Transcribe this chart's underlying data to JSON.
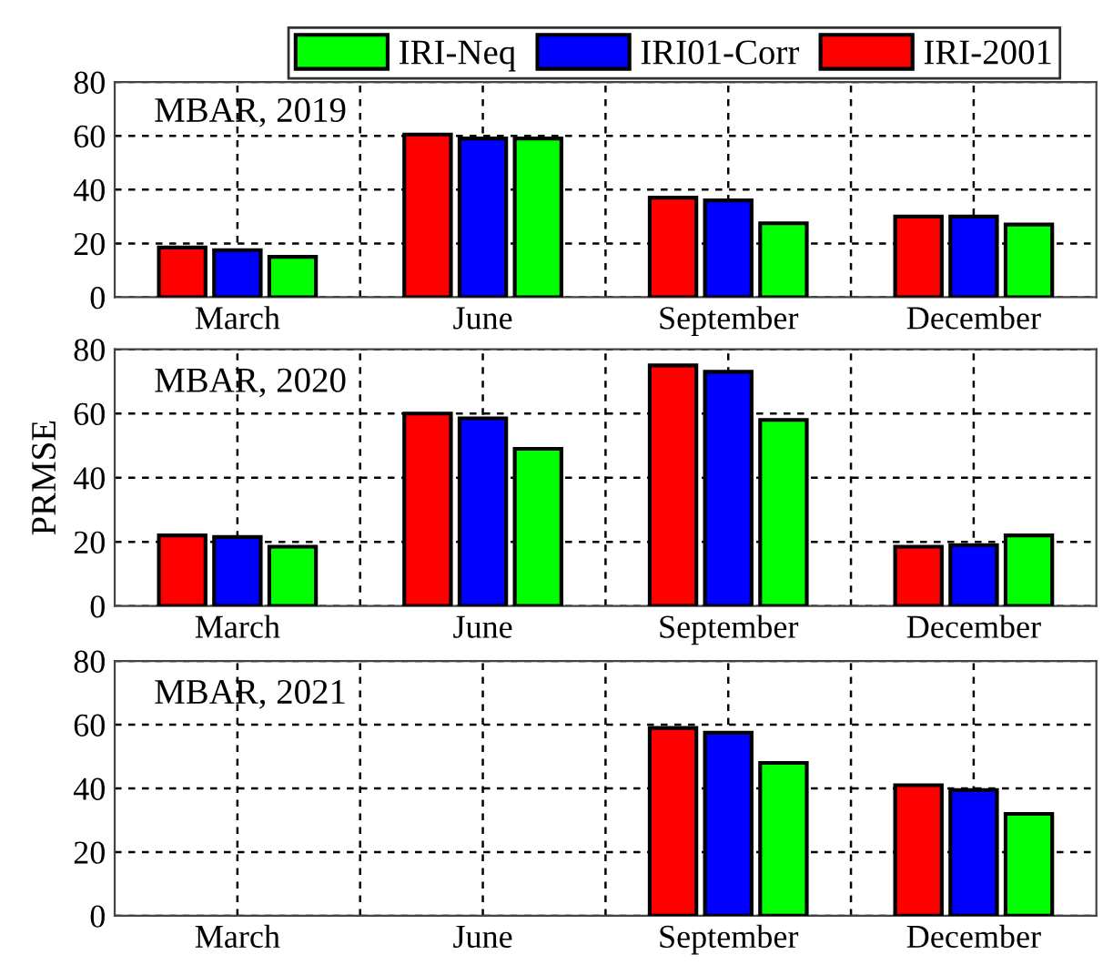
{
  "chart_data": [
    {
      "type": "bar",
      "annotations": [
        "MBAR, 2019"
      ],
      "categories": [
        "March",
        "June",
        "September",
        "December"
      ],
      "ylim": [
        0,
        80
      ],
      "yticks": [
        0,
        20,
        40,
        60,
        80
      ],
      "grid": true,
      "legend": "top",
      "series": [
        {
          "name": "IRI-2001",
          "color": "#ff0000",
          "values": [
            18.5,
            60.5,
            37,
            30
          ]
        },
        {
          "name": "IRI01-Corr",
          "color": "#0000ff",
          "values": [
            17.5,
            59,
            36,
            30
          ]
        },
        {
          "name": "IRI-Neq",
          "color": "#00ff00",
          "values": [
            15,
            59,
            27.5,
            27
          ]
        }
      ]
    },
    {
      "type": "bar",
      "annotations": [
        "MBAR, 2020"
      ],
      "ylabel": "PRMSE",
      "categories": [
        "March",
        "June",
        "September",
        "December"
      ],
      "ylim": [
        0,
        80
      ],
      "yticks": [
        0,
        20,
        40,
        60,
        80
      ],
      "grid": true,
      "series": [
        {
          "color": "#ff0000",
          "values": [
            22,
            60,
            75,
            18.5
          ]
        },
        {
          "color": "#0000ff",
          "values": [
            21.5,
            58.5,
            73,
            19
          ]
        },
        {
          "color": "#00ff00",
          "values": [
            18.5,
            49,
            58,
            22
          ]
        }
      ]
    },
    {
      "type": "bar",
      "annotations": [
        "MBAR, 2021"
      ],
      "categories": [
        "March",
        "June",
        "September",
        "December"
      ],
      "ylim": [
        0,
        80
      ],
      "yticks": [
        0,
        20,
        40,
        60,
        80
      ],
      "grid": true,
      "series": [
        {
          "color": "#ff0000",
          "values": [
            null,
            null,
            59,
            41
          ]
        },
        {
          "color": "#0000ff",
          "values": [
            null,
            null,
            57.5,
            39.5
          ]
        },
        {
          "color": "#00ff00",
          "values": [
            null,
            null,
            48,
            32
          ]
        }
      ]
    }
  ]
}
